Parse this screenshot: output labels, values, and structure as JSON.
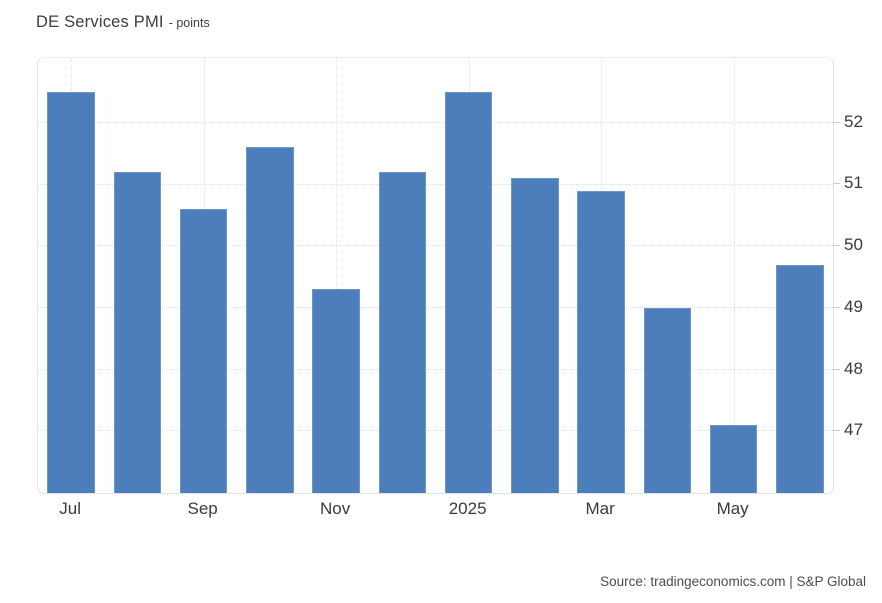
{
  "header": {
    "title": "DE Services PMI",
    "subtitle": "- points"
  },
  "footer": {
    "source": "Source: tradingeconomics.com | S&P Global"
  },
  "colors": {
    "bg": "#ffffff",
    "bar": "#4d7ebc",
    "bar_edge": "#6f95c5",
    "grid": "#e0e0e0",
    "plot_border": "#e3e3e3",
    "tick": "#c9c9c9",
    "title_text": "#3d3d3d",
    "axis_text": "#3a3a3a",
    "source_text": "#4c4c4c"
  },
  "chart_data": {
    "type": "bar",
    "title": "DE Services PMI",
    "ylabel": "points",
    "xlabel": "",
    "values": [
      52.5,
      51.2,
      50.6,
      51.6,
      49.3,
      51.2,
      52.5,
      51.1,
      50.9,
      49.0,
      47.1,
      49.7
    ],
    "x_tick_indices": [
      0,
      2,
      4,
      6,
      8,
      10
    ],
    "x_tick_labels": [
      "Jul",
      "Sep",
      "Nov",
      "2025",
      "Mar",
      "May"
    ],
    "y_ticks": [
      47,
      48,
      49,
      50,
      51,
      52
    ],
    "ylim": [
      46.0,
      53.05
    ],
    "grid": true,
    "legend_position": "none",
    "bar_color": "#4d7ebc",
    "y_axis_side": "right"
  }
}
